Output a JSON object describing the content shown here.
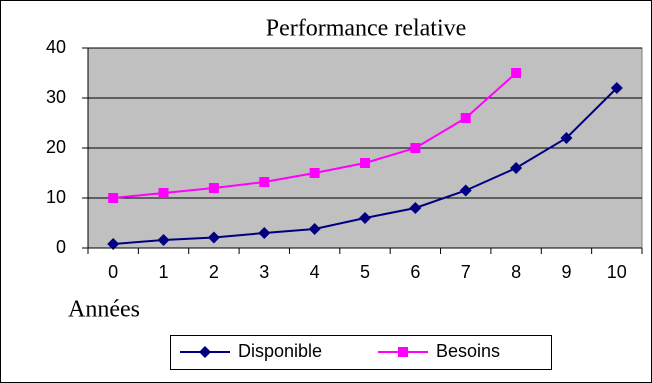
{
  "chart_data": {
    "type": "line",
    "title": "Performance relative",
    "x_label": "Années",
    "categories": [
      "0",
      "1",
      "2",
      "3",
      "4",
      "5",
      "6",
      "7",
      "8",
      "9",
      "10"
    ],
    "series": [
      {
        "name": "Disponible",
        "color": "#000080",
        "marker": "diamond",
        "values": [
          0.8,
          1.6,
          2.1,
          3,
          3.8,
          6,
          8,
          11.5,
          16,
          22,
          32
        ]
      },
      {
        "name": "Besoins",
        "color": "#ff00ff",
        "marker": "square",
        "values": [
          10,
          11,
          12,
          13.2,
          15,
          17,
          20,
          26,
          35,
          null,
          null
        ]
      }
    ],
    "ylim": [
      0,
      40
    ],
    "yticks": [
      0,
      10,
      20,
      30,
      40
    ],
    "grid": true,
    "legend": "bottom"
  }
}
